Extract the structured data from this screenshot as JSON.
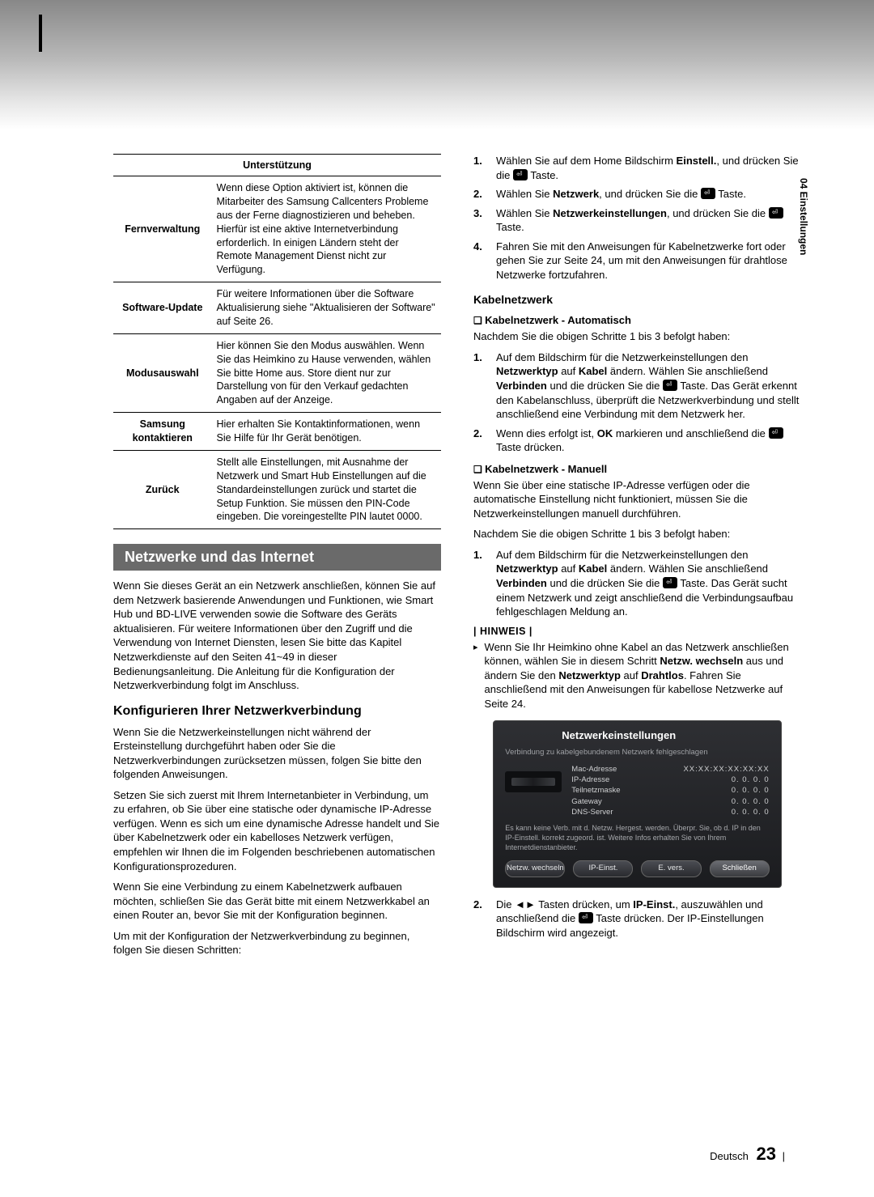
{
  "side_tab": "04   Einstellungen",
  "support_table": {
    "header": "Unterstützung",
    "rows": [
      {
        "k": "Fernverwaltung",
        "v": "Wenn diese Option aktiviert ist, können die Mitarbeiter des Samsung Callcenters Probleme aus der Ferne diagnostizieren und beheben. Hierfür ist eine aktive Internetverbindung erforderlich. In einigen Ländern steht der Remote Management Dienst nicht zur Verfügung."
      },
      {
        "k": "Software-Update",
        "v": "Für weitere Informationen über die Software Aktualisierung siehe \"Aktualisieren der Software\" auf Seite 26."
      },
      {
        "k": "Modusauswahl",
        "v": "Hier können Sie den Modus auswählen. Wenn Sie das Heimkino zu Hause verwenden, wählen Sie bitte Home aus. Store dient nur zur Darstellung von für den Verkauf gedachten Angaben auf der Anzeige."
      },
      {
        "k": "Samsung kontaktieren",
        "v": "Hier erhalten Sie Kontaktinformationen, wenn Sie Hilfe für Ihr Gerät benötigen."
      },
      {
        "k": "Zurück",
        "v": "Stellt alle Einstellungen, mit Ausnahme der Netzwerk und Smart Hub Einstellungen auf die Standardeinstellungen zurück und startet die Setup Funktion. Sie müssen den PIN-Code eingeben. Die voreingestellte PIN lautet 0000."
      }
    ]
  },
  "net_section": {
    "title": "Netzwerke und das Internet",
    "intro": "Wenn Sie dieses Gerät an ein Netzwerk anschließen, können Sie auf dem Netzwerk basierende Anwendungen und Funktionen, wie Smart Hub und BD-LIVE verwenden sowie die Software des Geräts aktualisieren. Für weitere Informationen über den Zugriff und die Verwendung von Internet Diensten, lesen Sie bitte das Kapitel Netzwerkdienste auf den Seiten 41~49 in dieser Bedienungsanleitung. Die Anleitung für die Konfiguration der Netzwerkverbindung folgt im Anschluss.",
    "cfg_h": "Konfigurieren Ihrer Netzwerkverbindung",
    "cfg_p1": "Wenn Sie die Netzwerkeinstellungen nicht während der Ersteinstellung durchgeführt haben oder Sie die Netzwerkverbindungen zurücksetzen müssen, folgen Sie bitte den folgenden Anweisungen.",
    "cfg_p2": "Setzen Sie sich zuerst mit Ihrem Internetanbieter in Verbindung, um zu erfahren, ob Sie über eine statische oder dynamische IP-Adresse verfügen. Wenn es sich um eine dynamische Adresse handelt und Sie über Kabelnetzwerk oder ein kabelloses Netzwerk verfügen, empfehlen wir Ihnen die im Folgenden beschriebenen automatischen Konfigurationsprozeduren.",
    "cfg_p3": "Wenn Sie eine Verbindung zu einem Kabelnetzwerk aufbauen möchten, schließen Sie das Gerät bitte mit einem Netzwerkkabel an einen Router an, bevor Sie mit der Konfiguration beginnen.",
    "cfg_p4": "Um mit der Konfiguration der Netzwerkverbindung zu beginnen, folgen Sie diesen Schritten:"
  },
  "right": {
    "steps_top": [
      {
        "n": "1.",
        "pre": "Wählen Sie auf dem Home Bildschirm ",
        "b": "Einstell.",
        "post": ", und drücken Sie die ",
        "tail": " Taste."
      },
      {
        "n": "2.",
        "pre": "Wählen Sie ",
        "b": "Netzwerk",
        "post": ", und drücken Sie die ",
        "tail": " Taste."
      },
      {
        "n": "3.",
        "pre": "Wählen Sie ",
        "b": "Netzwerkeinstellungen",
        "post": ", und drücken Sie die ",
        "tail": " Taste."
      },
      {
        "n": "4.",
        "pre": "Fahren Sie mit den Anweisungen für Kabelnetzwerke fort oder gehen Sie zur Seite 24, um mit den Anweisungen für drahtlose Netzwerke fortzufahren.",
        "b": "",
        "post": "",
        "tail": ""
      }
    ],
    "kabel_h": "Kabelnetzwerk",
    "kabel_auto_h": "Kabelnetzwerk - Automatisch",
    "kabel_auto_lead": "Nachdem Sie die obigen Schritte 1 bis 3 befolgt haben:",
    "kabel_auto_steps": [
      {
        "n": "1.",
        "html": "Auf dem Bildschirm für die Netzwerkeinstellungen den <b>Netzwerktyp</b> auf <b>Kabel</b> ändern. Wählen Sie anschließend <b>Verbinden</b> und die drücken Sie die <span class='key'></span> Taste. Das Gerät erkennt den Kabelanschluss, überprüft die Netzwerkverbindung und stellt anschließend eine Verbindung mit dem Netzwerk her."
      },
      {
        "n": "2.",
        "html": "Wenn dies erfolgt ist, <b>OK</b> markieren und anschließend die <span class='key'></span> Taste drücken."
      }
    ],
    "kabel_man_h": "Kabelnetzwerk - Manuell",
    "kabel_man_p1": "Wenn Sie über eine statische IP-Adresse verfügen oder die automatische Einstellung nicht funktioniert, müssen Sie die Netzwerkeinstellungen manuell durchführen.",
    "kabel_man_p2": "Nachdem Sie die obigen Schritte 1 bis 3 befolgt haben:",
    "kabel_man_steps": [
      {
        "n": "1.",
        "html": "Auf dem Bildschirm für die Netzwerkeinstellungen den <b>Netzwerktyp</b> auf <b>Kabel</b> ändern. Wählen Sie anschließend <b>Verbinden</b> und die drücken Sie die <span class='key'></span> Taste. Das Gerät sucht einem Netzwerk und zeigt anschließend die Verbindungsaufbau fehlgeschlagen Meldung an."
      }
    ],
    "note_h": "| HINWEIS |",
    "note_body_pre": "Wenn Sie Ihr Heimkino ohne Kabel an das Netzwerk anschließen können, wählen Sie in diesem Schritt ",
    "note_b1": "Netzw. wechseln",
    "note_mid1": " aus und ändern Sie den ",
    "note_b2": "Netzwerktyp",
    "note_mid2": " auf ",
    "note_b3": "Drahtlos",
    "note_tail": ". Fahren Sie anschließend mit den Anweisungen für kabellose Netzwerke auf Seite 24.",
    "step2_html": "Die ◄► Tasten drücken, um <b>IP-Einst.</b>, auszuwählen und anschließend die <span class='key'></span> Taste drücken. Der IP-Einstellungen Bildschirm wird angezeigt."
  },
  "osd": {
    "title": "Netzwerkeinstellungen",
    "status": "Verbindung zu kabelgebundenem Netzwerk fehlgeschlagen",
    "labels": [
      "Mac-Adresse",
      "IP-Adresse",
      "Teilnetzmaske",
      "Gateway",
      "DNS-Server"
    ],
    "values": [
      "XX:XX:XX:XX:XX:XX",
      "0. 0. 0. 0",
      "0. 0. 0. 0",
      "0. 0. 0. 0",
      "0. 0. 0. 0"
    ],
    "hint": "Es kann keine Verb. mit d. Netzw. Hergest. werden. Überpr. Sie, ob d. IP in den IP-Einstell. korrekt zugeord. ist. Weitere Infos erhalten Sie von Ihrem Internetdienstanbieter.",
    "buttons": [
      "Netzw. wechseln",
      "IP-Einst.",
      "E. vers.",
      "Schließen"
    ]
  },
  "footer": {
    "lang": "Deutsch",
    "page": "23",
    "bar": "|"
  }
}
